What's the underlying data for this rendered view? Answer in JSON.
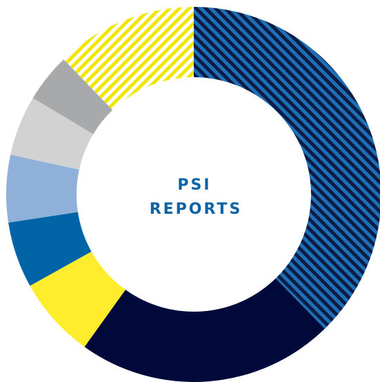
{
  "chart_data": {
    "type": "donut",
    "center_label": [
      "PSI",
      "REPORTS"
    ],
    "values": [
      37.7,
      22.2,
      7,
      5.7,
      5.8,
      5.2,
      4.2,
      12.2
    ],
    "colors": [
      "#0b1c45",
      "#000a3a",
      "#ffec2c",
      "#0064a6",
      "#8fb0d8",
      "#d2d2d2",
      "#a8a9ab",
      "#f2e600"
    ],
    "stripe_backgrounds": [
      "#1f6fb6",
      null,
      null,
      null,
      null,
      null,
      null,
      "#ffffff"
    ],
    "label_color": "#0b63a6"
  }
}
